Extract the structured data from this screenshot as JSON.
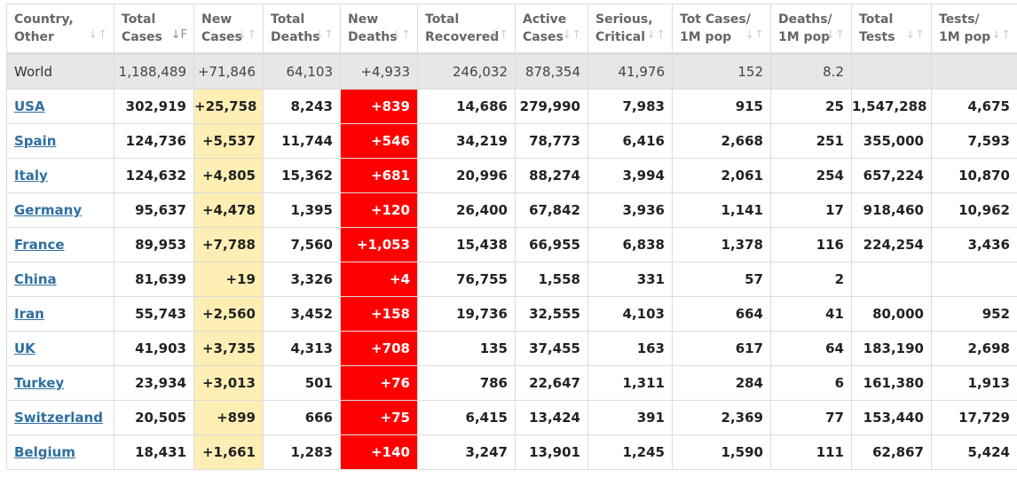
{
  "columns": [
    {
      "l1": "Country,",
      "l2": "Other",
      "sort": "↓↑",
      "active": false
    },
    {
      "l1": "Total",
      "l2": "Cases",
      "sort": "↓F",
      "active": true
    },
    {
      "l1": "New",
      "l2": "Cases",
      "sort": "↓↑",
      "active": false
    },
    {
      "l1": "Total",
      "l2": "Deaths",
      "sort": "↓↑",
      "active": false
    },
    {
      "l1": "New",
      "l2": "Deaths",
      "sort": "↓↑",
      "active": false
    },
    {
      "l1": "Total",
      "l2": "Recovered",
      "sort": "↓↑",
      "active": false
    },
    {
      "l1": "Active",
      "l2": "Cases",
      "sort": "↓↑",
      "active": false
    },
    {
      "l1": "Serious,",
      "l2": "Critical",
      "sort": "↓↑",
      "active": false
    },
    {
      "l1": "Tot Cases/",
      "l2": "1M pop",
      "sort": "↓↑",
      "active": false
    },
    {
      "l1": "Deaths/",
      "l2": "1M pop",
      "sort": "↓↑",
      "active": false
    },
    {
      "l1": "Total",
      "l2": "Tests",
      "sort": "↓↑",
      "active": false
    },
    {
      "l1": "Tests/",
      "l2": "1M pop",
      "sort": "↓↑",
      "active": false
    }
  ],
  "world": [
    "World",
    "1,188,489",
    "+71,846",
    "64,103",
    "+4,933",
    "246,032",
    "878,354",
    "41,976",
    "152",
    "8.2",
    "",
    ""
  ],
  "rows": [
    [
      "USA",
      "302,919",
      "+25,758",
      "8,243",
      "+839",
      "14,686",
      "279,990",
      "7,983",
      "915",
      "25",
      "1,547,288",
      "4,675"
    ],
    [
      "Spain",
      "124,736",
      "+5,537",
      "11,744",
      "+546",
      "34,219",
      "78,773",
      "6,416",
      "2,668",
      "251",
      "355,000",
      "7,593"
    ],
    [
      "Italy",
      "124,632",
      "+4,805",
      "15,362",
      "+681",
      "20,996",
      "88,274",
      "3,994",
      "2,061",
      "254",
      "657,224",
      "10,870"
    ],
    [
      "Germany",
      "95,637",
      "+4,478",
      "1,395",
      "+120",
      "26,400",
      "67,842",
      "3,936",
      "1,141",
      "17",
      "918,460",
      "10,962"
    ],
    [
      "France",
      "89,953",
      "+7,788",
      "7,560",
      "+1,053",
      "15,438",
      "66,955",
      "6,838",
      "1,378",
      "116",
      "224,254",
      "3,436"
    ],
    [
      "China",
      "81,639",
      "+19",
      "3,326",
      "+4",
      "76,755",
      "1,558",
      "331",
      "57",
      "2",
      "",
      ""
    ],
    [
      "Iran",
      "55,743",
      "+2,560",
      "3,452",
      "+158",
      "19,736",
      "32,555",
      "4,103",
      "664",
      "41",
      "80,000",
      "952"
    ],
    [
      "UK",
      "41,903",
      "+3,735",
      "4,313",
      "+708",
      "135",
      "37,455",
      "163",
      "617",
      "64",
      "183,190",
      "2,698"
    ],
    [
      "Turkey",
      "23,934",
      "+3,013",
      "501",
      "+76",
      "786",
      "22,647",
      "1,311",
      "284",
      "6",
      "161,380",
      "1,913"
    ],
    [
      "Switzerland",
      "20,505",
      "+899",
      "666",
      "+75",
      "6,415",
      "13,424",
      "391",
      "2,369",
      "77",
      "153,440",
      "17,729"
    ],
    [
      "Belgium",
      "18,431",
      "+1,661",
      "1,283",
      "+140",
      "3,247",
      "13,901",
      "1,245",
      "1,590",
      "111",
      "62,867",
      "5,424"
    ]
  ],
  "colors": {
    "new_cases_bg": "#fdefb4",
    "new_deaths_bg": "#ff0000",
    "world_row_bg": "#e7e7e7",
    "link": "#2f6fa0"
  }
}
